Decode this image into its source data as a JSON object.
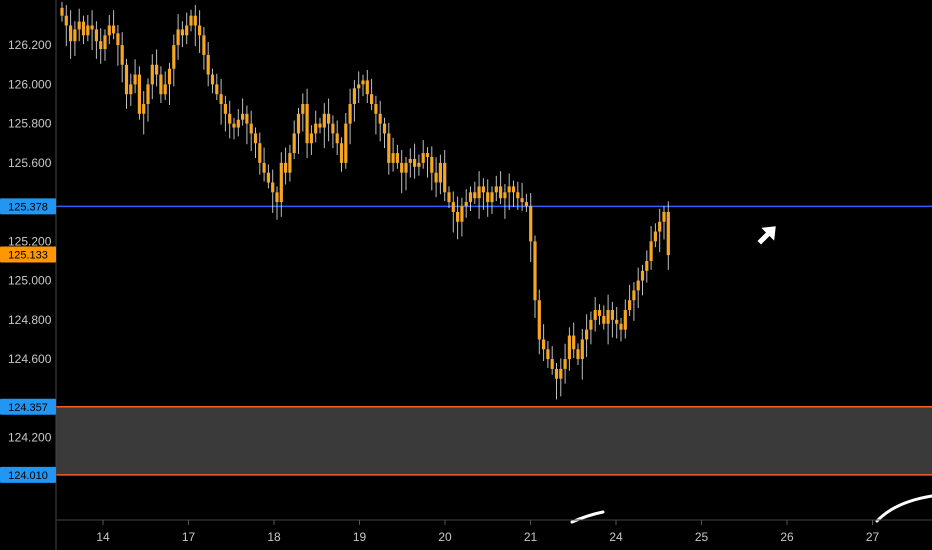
{
  "chart_data": {
    "type": "candlestick",
    "title": "",
    "xlabel": "",
    "ylabel": "",
    "x_ticks": [
      "14",
      "17",
      "18",
      "19",
      "20",
      "21",
      "24",
      "25",
      "26",
      "27"
    ],
    "y_ticks": [
      "126.200",
      "126.000",
      "125.800",
      "125.600",
      "125.200",
      "125.000",
      "124.800",
      "124.600",
      "124.200"
    ],
    "ylim": [
      123.78,
      126.43
    ],
    "grid": false,
    "colors": {
      "background": "#000000",
      "candle": "#f5a623",
      "wick": "#ffffff",
      "blue_line": "#2962ff",
      "orange_line": "#ff5a1f",
      "zone": "#3a3a3a",
      "axis_text": "#c8c8c8",
      "blue_label": "#2196f3",
      "orange_label": "#ff9800"
    },
    "price_labels": [
      {
        "value": 125.378,
        "text": "125.378",
        "style": "blue"
      },
      {
        "value": 125.133,
        "text": "125.133",
        "style": "orange"
      },
      {
        "value": 124.357,
        "text": "124.357",
        "style": "blue"
      },
      {
        "value": 124.01,
        "text": "124.010",
        "style": "blue"
      }
    ],
    "horizontal_lines": [
      {
        "value": 125.378,
        "color": "blue"
      },
      {
        "value": 124.357,
        "color": "orange"
      },
      {
        "value": 124.01,
        "color": "orange"
      }
    ],
    "zone": {
      "from": 124.01,
      "to": 124.357
    },
    "series": [
      {
        "values": [
          126.35,
          126.3,
          126.22,
          126.28,
          126.32,
          126.25,
          126.3,
          126.28,
          126.22,
          126.18,
          126.25,
          126.3,
          126.26,
          126.2,
          126.1,
          125.95,
          126.0,
          126.05,
          125.85,
          125.9,
          126.0,
          126.1,
          126.05,
          125.95,
          126.0,
          126.08,
          126.2,
          126.28,
          126.25,
          126.3,
          126.35,
          126.3,
          126.25,
          126.15,
          126.05,
          126.0,
          125.95,
          125.9,
          125.85,
          125.8,
          125.78,
          125.82,
          125.85,
          125.8,
          125.75,
          125.7,
          125.6,
          125.55,
          125.5,
          125.45,
          125.4,
          125.6,
          125.55,
          125.65,
          125.75,
          125.85,
          125.9,
          125.7,
          125.75,
          125.8,
          125.78,
          125.85,
          125.8,
          125.75,
          125.7,
          125.6,
          125.8,
          125.9,
          125.98,
          126.0,
          126.02,
          125.95,
          125.9,
          125.85,
          125.8,
          125.75,
          125.6,
          125.65,
          125.6,
          125.55,
          125.6,
          125.62,
          125.58,
          125.6,
          125.65,
          125.63,
          125.55,
          125.5,
          125.6,
          125.45,
          125.4,
          125.35,
          125.3,
          125.38,
          125.4,
          125.45,
          125.42,
          125.48,
          125.45,
          125.4,
          125.45,
          125.48,
          125.42,
          125.45,
          125.48,
          125.45,
          125.42,
          125.4,
          125.38,
          125.2,
          124.9,
          124.7,
          124.65,
          124.6,
          124.55,
          124.5,
          124.55,
          124.6,
          124.72,
          124.65,
          124.6,
          124.7,
          124.75,
          124.8,
          124.85,
          124.82,
          124.78,
          124.85,
          124.8,
          124.78,
          124.75,
          124.85,
          124.9,
          124.95,
          125.0,
          125.05,
          125.1,
          125.2,
          125.25,
          125.3,
          125.35,
          125.13
        ]
      }
    ],
    "annotations": [
      "cursor-arrow-icon"
    ]
  }
}
